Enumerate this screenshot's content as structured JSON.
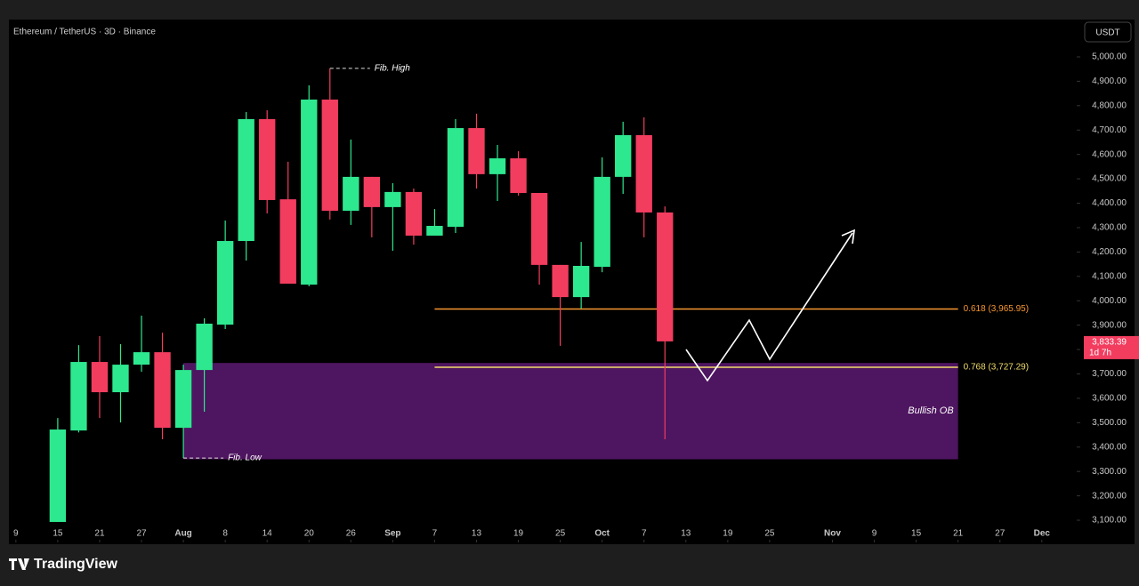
{
  "header": {
    "symbol": "Ethereum / TetherUS · 3D · Binance",
    "currency_button": "USDT"
  },
  "footer": {
    "brand": "TradingView"
  },
  "chart_data": {
    "type": "candlestick",
    "x": [
      "07-15",
      "07-18",
      "07-21",
      "07-24",
      "07-27",
      "07-30",
      "08-02",
      "08-05",
      "08-08",
      "08-11",
      "08-14",
      "08-17",
      "08-20",
      "08-23",
      "08-26",
      "08-29",
      "09-01",
      "09-04",
      "09-07",
      "09-10",
      "09-13",
      "09-16",
      "09-19",
      "09-22",
      "09-25",
      "09-28",
      "10-01",
      "10-04",
      "10-07",
      "10-10"
    ],
    "open": [
      3093,
      3468,
      3749,
      3625,
      3738,
      3789,
      3479,
      3716,
      3902,
      4245,
      4745,
      4416,
      4066,
      4825,
      4369,
      4508,
      4384,
      4446,
      4267,
      4303,
      4708,
      4519,
      4584,
      4442,
      4147,
      4015,
      4139,
      4508,
      4679,
      4362
    ],
    "high": [
      3519,
      3818,
      3855,
      3822,
      3939,
      3869,
      3738,
      3928,
      4329,
      4774,
      4781,
      4570,
      4883,
      4953,
      4661,
      4508,
      4482,
      4460,
      4376,
      4745,
      4767,
      4639,
      4613,
      4442,
      4147,
      4241,
      4588,
      4734,
      4752,
      4387
    ],
    "low": [
      3093,
      3460,
      3519,
      3501,
      3709,
      3432,
      3355,
      3545,
      3884,
      4165,
      4358,
      4070,
      4059,
      4333,
      4311,
      4260,
      4205,
      4230,
      4267,
      4278,
      4460,
      4409,
      4431,
      4066,
      3815,
      3968,
      4117,
      4438,
      4260,
      3432
    ],
    "close": [
      3472,
      3749,
      3625,
      3738,
      3789,
      3479,
      3716,
      3906,
      4245,
      4745,
      4413,
      4070,
      4825,
      4369,
      4508,
      4384,
      4446,
      4267,
      4307,
      4708,
      4519,
      4584,
      4442,
      4147,
      4015,
      4143,
      4508,
      4679,
      4362,
      3833.39
    ],
    "up_color": "#2ee88f",
    "down_color": "#f23d5f",
    "xlim": [
      "07-08",
      "12-08"
    ],
    "xticks": [
      {
        "value": "07-09",
        "label": "9"
      },
      {
        "value": "07-15",
        "label": "15"
      },
      {
        "value": "07-21",
        "label": "21"
      },
      {
        "value": "07-27",
        "label": "27"
      },
      {
        "value": "08-02",
        "label": "Aug"
      },
      {
        "value": "08-08",
        "label": "8"
      },
      {
        "value": "08-14",
        "label": "14"
      },
      {
        "value": "08-20",
        "label": "20"
      },
      {
        "value": "08-26",
        "label": "26"
      },
      {
        "value": "09-01",
        "label": "Sep"
      },
      {
        "value": "09-07",
        "label": "7"
      },
      {
        "value": "09-13",
        "label": "13"
      },
      {
        "value": "09-19",
        "label": "19"
      },
      {
        "value": "09-25",
        "label": "25"
      },
      {
        "value": "10-01",
        "label": "Oct"
      },
      {
        "value": "10-07",
        "label": "7"
      },
      {
        "value": "10-13",
        "label": "13"
      },
      {
        "value": "10-19",
        "label": "19"
      },
      {
        "value": "10-25",
        "label": "25"
      },
      {
        "value": "11-03",
        "label": "Nov"
      },
      {
        "value": "11-09",
        "label": "9"
      },
      {
        "value": "11-15",
        "label": "15"
      },
      {
        "value": "11-21",
        "label": "21"
      },
      {
        "value": "11-27",
        "label": "27"
      },
      {
        "value": "12-03",
        "label": "Dec"
      }
    ],
    "ylim": [
      3009,
      5153
    ],
    "yticks": [
      {
        "value": 3100,
        "label": "3,100.00"
      },
      {
        "value": 3200,
        "label": "3,200.00"
      },
      {
        "value": 3300,
        "label": "3,300.00"
      },
      {
        "value": 3400,
        "label": "3,400.00"
      },
      {
        "value": 3500,
        "label": "3,500.00"
      },
      {
        "value": 3600,
        "label": "3,600.00"
      },
      {
        "value": 3700,
        "label": "3,700.00"
      },
      {
        "value": 3800,
        "label": "3,800.00"
      },
      {
        "value": 3900,
        "label": "3,900.00"
      },
      {
        "value": 4000,
        "label": "4,000.00"
      },
      {
        "value": 4100,
        "label": "4,100.00"
      },
      {
        "value": 4200,
        "label": "4,200.00"
      },
      {
        "value": 4300,
        "label": "4,300.00"
      },
      {
        "value": 4400,
        "label": "4,400.00"
      },
      {
        "value": 4500,
        "label": "4,500.00"
      },
      {
        "value": 4600,
        "label": "4,600.00"
      },
      {
        "value": 4700,
        "label": "4,700.00"
      },
      {
        "value": 4800,
        "label": "4,800.00"
      },
      {
        "value": 4900,
        "label": "4,900.00"
      },
      {
        "value": 5000,
        "label": "5,000.00"
      }
    ],
    "zone": {
      "label": "Bullish OB",
      "top": 3745,
      "bottom": 3350,
      "x_start": "08-02",
      "x_end": "11-21",
      "color": "#4e1560"
    },
    "fib_levels": [
      {
        "label": "0.618 (3,965.95)",
        "value": 3965.95,
        "color": "#f7962e",
        "x_start": "09-07",
        "x_end": "11-21"
      },
      {
        "label": "0.768 (3,727.29)",
        "value": 3727.29,
        "color": "#f0dc6a",
        "x_start": "09-07",
        "x_end": "11-21"
      }
    ],
    "annotations": [
      {
        "label": "Fib. High",
        "value": 4953,
        "x": "08-23"
      },
      {
        "label": "Fib. Low",
        "value": 3355,
        "x": "08-02"
      }
    ],
    "price_label": {
      "value": 3833.39,
      "label": "3,833.39",
      "countdown": "1d 7h",
      "color": "#f23d5f"
    }
  }
}
